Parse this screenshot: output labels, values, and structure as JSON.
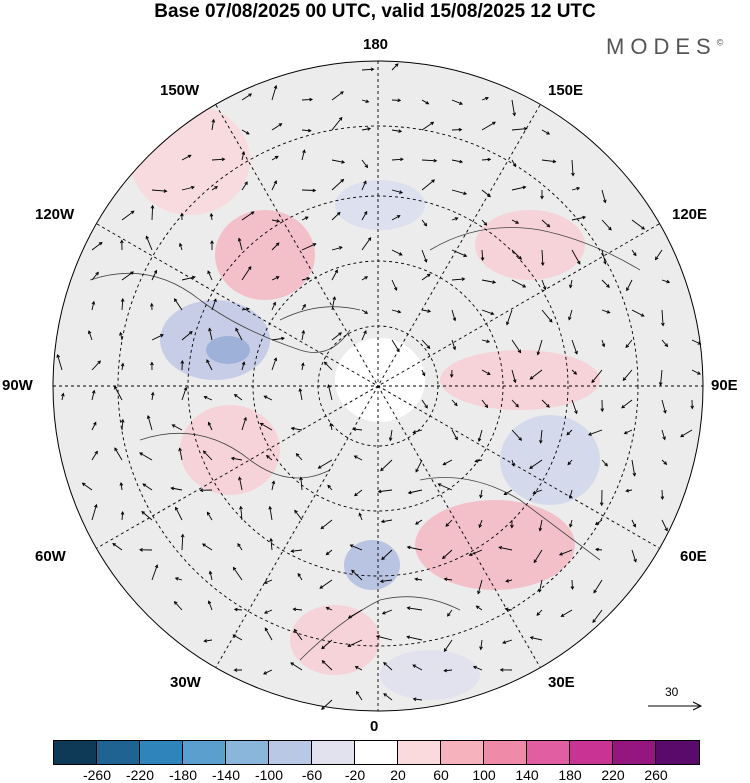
{
  "title": "Base 07/08/2025 00 UTC, valid 15/08/2025 12 UTC",
  "brand": {
    "name": "MODES",
    "mark": "©"
  },
  "map": {
    "projection": "north-polar-stereographic",
    "longitude_labels": {
      "top": "180",
      "bottom": "0",
      "left": "90W",
      "right": "90E",
      "upper_left": "150W",
      "upper_right": "150E",
      "mid_upper_left": "120W",
      "mid_upper_right": "120E",
      "mid_lower_left": "60W",
      "mid_lower_right": "60E",
      "lower_left": "30W",
      "lower_right": "30E"
    },
    "vector_reference": {
      "label": "30"
    }
  },
  "colorbar": {
    "colors": [
      "#0e3a57",
      "#1f6392",
      "#2f84bb",
      "#5a9fcd",
      "#8ab6dc",
      "#b9c8e4",
      "#e2e2ef",
      "#ffffff",
      "#fbdadd",
      "#f6b2bd",
      "#f08aa9",
      "#e25ea2",
      "#c93394",
      "#96167f",
      "#5a0a6b"
    ],
    "ticks": [
      "-260",
      "-220",
      "-180",
      "-140",
      "-100",
      "-60",
      "-20",
      "20",
      "60",
      "100",
      "140",
      "180",
      "220",
      "260"
    ]
  }
}
